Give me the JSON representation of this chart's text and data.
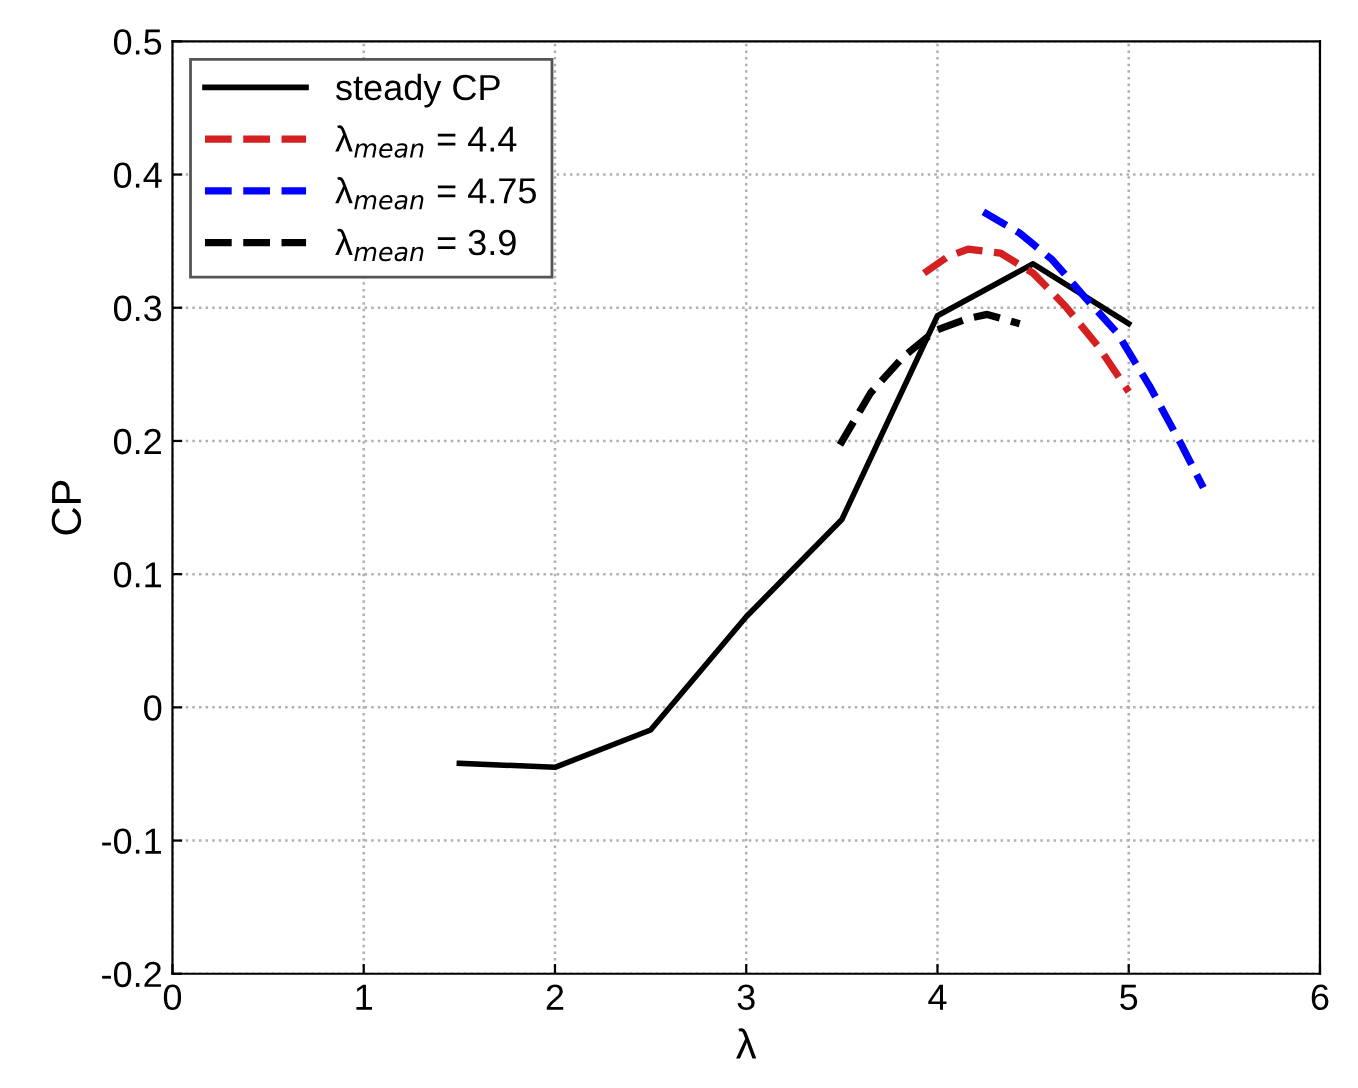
{
  "chart_data": {
    "type": "line",
    "xlabel": "λ",
    "ylabel": "CP",
    "xlim": [
      0,
      6
    ],
    "xticks": [
      0,
      1,
      2,
      3,
      4,
      5,
      6
    ],
    "ylim": [
      -0.2,
      0.5
    ],
    "yticks": [
      -0.2,
      -0.1,
      0,
      0.1,
      0.2,
      0.3,
      0.4,
      0.5
    ],
    "grid": true,
    "legend": "top left",
    "marker": "none",
    "series": [
      {
        "name": "steady CP",
        "color": "#000000",
        "line_style": "solid",
        "x": [
          1.5,
          2,
          2.5,
          3,
          3.5,
          4,
          4.5,
          5
        ],
        "values": [
          -0.042,
          -0.045,
          -0.017,
          0.068,
          0.141,
          0.294,
          0.333,
          0.288
        ]
      },
      {
        "name": "λ$_{mean}$ = 4.4",
        "color": "#d42020",
        "line_style": "dashed",
        "x": [
          3.93,
          4.05,
          4.16,
          4.33,
          4.5,
          4.67,
          4.84,
          5.0
        ],
        "values": [
          0.326,
          0.338,
          0.344,
          0.341,
          0.326,
          0.301,
          0.271,
          0.237
        ]
      },
      {
        "name": "λ$_{mean}$ = 4.75",
        "color": "#0000ff",
        "line_style": "dashed",
        "x": [
          4.24,
          4.43,
          4.6,
          4.77,
          4.94,
          5.11,
          5.28,
          5.39
        ],
        "values": [
          0.372,
          0.356,
          0.336,
          0.308,
          0.281,
          0.241,
          0.196,
          0.165
        ]
      },
      {
        "name": "λ$_{mean}$ = 3.9",
        "color": "#000000",
        "line_style": "dashed",
        "x": [
          3.49,
          3.65,
          3.82,
          3.99,
          4.16,
          4.26,
          4.43
        ],
        "values": [
          0.197,
          0.236,
          0.263,
          0.283,
          0.292,
          0.295,
          0.288
        ]
      }
    ]
  }
}
